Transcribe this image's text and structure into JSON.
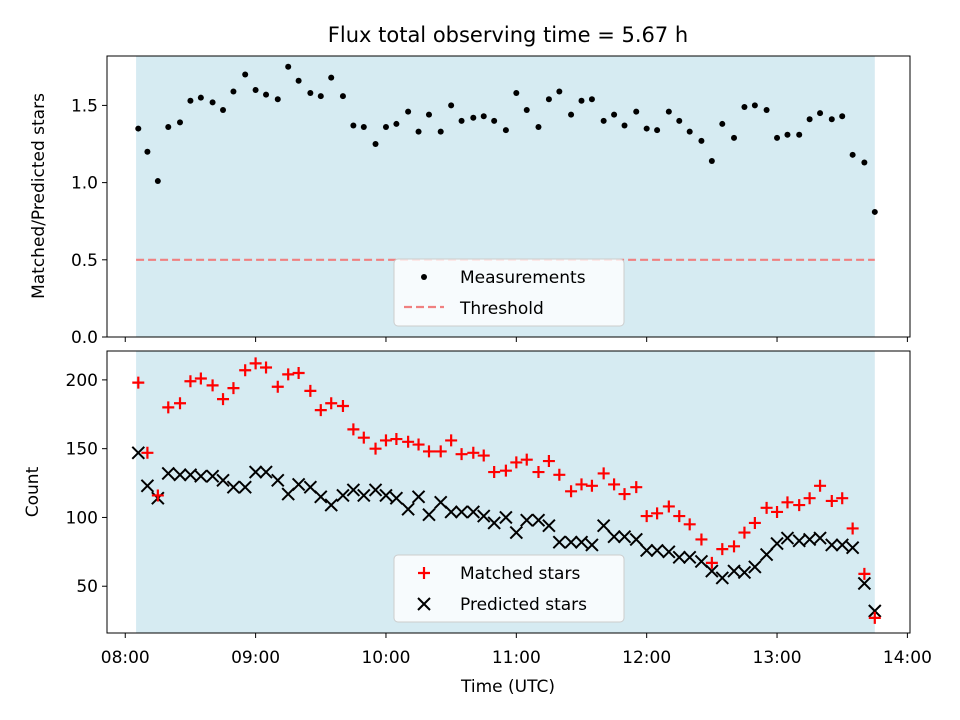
{
  "chart_data": {
    "title": "Flux total observing time = 5.67 h",
    "xlabel": "Time (UTC)",
    "xticks": [
      "08:00",
      "09:00",
      "10:00",
      "11:00",
      "12:00",
      "13:00",
      "14:00"
    ],
    "xlim": [
      7.86,
      14.02
    ],
    "shade_range": [
      8.083,
      13.75
    ],
    "colors": {
      "shade": "#add8e6",
      "matched": "#ff0000",
      "predicted": "#000000",
      "threshold": "#f08080",
      "points": "#000000"
    },
    "panels": [
      {
        "type": "scatter",
        "ylabel": "Matched/Predicted stars",
        "ylim": [
          0,
          1.82
        ],
        "yticks": [
          0.0,
          0.5,
          1.0,
          1.5
        ],
        "ytick_labels": [
          "0.0",
          "0.5",
          "1.0",
          "1.5"
        ],
        "threshold": 0.5,
        "legend": {
          "position": "lower center",
          "entries": [
            "Measurements",
            "Threshold"
          ]
        },
        "series": [
          {
            "name": "Measurements",
            "marker": "dot",
            "x": [
              8.1,
              8.17,
              8.25,
              8.33,
              8.42,
              8.5,
              8.58,
              8.67,
              8.75,
              8.83,
              8.92,
              9.0,
              9.08,
              9.17,
              9.25,
              9.33,
              9.42,
              9.5,
              9.58,
              9.67,
              9.75,
              9.83,
              9.92,
              10.0,
              10.08,
              10.17,
              10.25,
              10.33,
              10.42,
              10.5,
              10.58,
              10.67,
              10.75,
              10.83,
              10.92,
              11.0,
              11.08,
              11.17,
              11.25,
              11.33,
              11.42,
              11.5,
              11.58,
              11.67,
              11.75,
              11.83,
              11.92,
              12.0,
              12.08,
              12.17,
              12.25,
              12.33,
              12.42,
              12.5,
              12.58,
              12.67,
              12.75,
              12.83,
              12.92,
              13.0,
              13.08,
              13.17,
              13.25,
              13.33,
              13.42,
              13.5,
              13.58,
              13.67,
              13.75
            ],
            "y": [
              1.35,
              1.2,
              1.01,
              1.36,
              1.39,
              1.53,
              1.55,
              1.52,
              1.47,
              1.59,
              1.7,
              1.6,
              1.57,
              1.54,
              1.75,
              1.66,
              1.58,
              1.56,
              1.68,
              1.56,
              1.37,
              1.36,
              1.25,
              1.36,
              1.38,
              1.46,
              1.33,
              1.44,
              1.33,
              1.5,
              1.4,
              1.42,
              1.43,
              1.4,
              1.34,
              1.58,
              1.47,
              1.36,
              1.54,
              1.59,
              1.44,
              1.53,
              1.54,
              1.4,
              1.44,
              1.37,
              1.46,
              1.35,
              1.34,
              1.46,
              1.4,
              1.33,
              1.27,
              1.14,
              1.38,
              1.29,
              1.49,
              1.5,
              1.47,
              1.29,
              1.31,
              1.31,
              1.41,
              1.45,
              1.41,
              1.43,
              1.18,
              1.13,
              0.81
            ]
          }
        ]
      },
      {
        "type": "scatter",
        "ylabel": "Count",
        "ylim": [
          16,
          221
        ],
        "yticks": [
          50,
          100,
          150,
          200
        ],
        "ytick_labels": [
          "50",
          "100",
          "150",
          "200"
        ],
        "legend": {
          "position": "lower center",
          "entries": [
            "Matched stars",
            "Predicted stars"
          ]
        },
        "series": [
          {
            "name": "Matched stars",
            "marker": "plus",
            "x": [
              8.1,
              8.17,
              8.25,
              8.33,
              8.42,
              8.5,
              8.58,
              8.67,
              8.75,
              8.83,
              8.92,
              9.0,
              9.08,
              9.17,
              9.25,
              9.33,
              9.42,
              9.5,
              9.58,
              9.67,
              9.75,
              9.83,
              9.92,
              10.0,
              10.08,
              10.17,
              10.25,
              10.33,
              10.42,
              10.5,
              10.58,
              10.67,
              10.75,
              10.83,
              10.92,
              11.0,
              11.08,
              11.17,
              11.25,
              11.33,
              11.42,
              11.5,
              11.58,
              11.67,
              11.75,
              11.83,
              11.92,
              12.0,
              12.08,
              12.17,
              12.25,
              12.33,
              12.42,
              12.5,
              12.58,
              12.67,
              12.75,
              12.83,
              12.92,
              13.0,
              13.08,
              13.17,
              13.25,
              13.33,
              13.42,
              13.5,
              13.58,
              13.67,
              13.75
            ],
            "y": [
              198,
              147,
              116,
              180,
              183,
              199,
              201,
              196,
              186,
              194,
              207,
              212,
              209,
              195,
              204,
              205,
              192,
              178,
              183,
              181,
              164,
              158,
              150,
              156,
              157,
              155,
              153,
              148,
              148,
              156,
              146,
              147,
              145,
              133,
              134,
              140,
              142,
              133,
              141,
              131,
              119,
              124,
              123,
              132,
              124,
              117,
              122,
              101,
              103,
              108,
              101,
              95,
              84,
              67,
              77,
              79,
              89,
              96,
              107,
              104,
              111,
              109,
              114,
              123,
              112,
              114,
              92,
              59,
              27
            ]
          },
          {
            "name": "Predicted stars",
            "marker": "x",
            "x": [
              8.1,
              8.17,
              8.25,
              8.33,
              8.42,
              8.5,
              8.58,
              8.67,
              8.75,
              8.83,
              8.92,
              9.0,
              9.08,
              9.17,
              9.25,
              9.33,
              9.42,
              9.5,
              9.58,
              9.67,
              9.75,
              9.83,
              9.92,
              10.0,
              10.08,
              10.17,
              10.25,
              10.33,
              10.42,
              10.5,
              10.58,
              10.67,
              10.75,
              10.83,
              10.92,
              11.0,
              11.08,
              11.17,
              11.25,
              11.33,
              11.42,
              11.5,
              11.58,
              11.67,
              11.75,
              11.83,
              11.92,
              12.0,
              12.08,
              12.17,
              12.25,
              12.33,
              12.42,
              12.5,
              12.58,
              12.67,
              12.75,
              12.83,
              12.92,
              13.0,
              13.08,
              13.17,
              13.25,
              13.33,
              13.42,
              13.5,
              13.58,
              13.67,
              13.75
            ],
            "y": [
              147,
              123,
              114,
              132,
              131,
              131,
              130,
              130,
              127,
              122,
              122,
              133,
              133,
              127,
              117,
              124,
              122,
              115,
              109,
              116,
              120,
              116,
              120,
              116,
              114,
              106,
              115,
              102,
              111,
              104,
              104,
              104,
              101,
              96,
              100,
              89,
              98,
              98,
              94,
              82,
              82,
              82,
              80,
              94,
              86,
              86,
              84,
              76,
              76,
              75,
              71,
              71,
              68,
              61,
              56,
              61,
              60,
              64,
              73,
              81,
              85,
              83,
              84,
              85,
              80,
              80,
              78,
              52,
              32
            ]
          }
        ]
      }
    ]
  }
}
